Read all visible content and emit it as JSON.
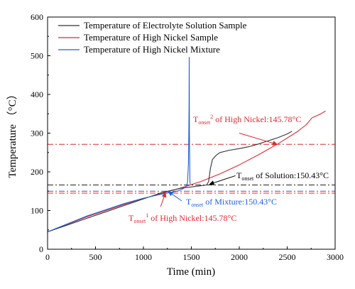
{
  "chart_data": {
    "type": "line",
    "xlabel": "Time (min)",
    "ylabel": "Temperature （°C）",
    "xlim": [
      0,
      3000
    ],
    "ylim": [
      0,
      600
    ],
    "x_ticks": [
      0,
      500,
      1000,
      1500,
      2000,
      2500,
      3000
    ],
    "y_ticks": [
      0,
      100,
      200,
      300,
      400,
      500,
      600
    ],
    "legend_position": "top-left",
    "series": [
      {
        "name": "Temperature of Electrolyte Solution Sample",
        "color": "#333333",
        "points": [
          [
            0,
            45
          ],
          [
            200,
            62
          ],
          [
            400,
            79
          ],
          [
            600,
            96
          ],
          [
            800,
            113
          ],
          [
            1000,
            130
          ],
          [
            1200,
            147
          ],
          [
            1400,
            158
          ],
          [
            1600,
            164
          ],
          [
            1660,
            166
          ],
          [
            1680,
            175
          ],
          [
            1700,
            210
          ],
          [
            1720,
            232
          ],
          [
            1760,
            243
          ],
          [
            1800,
            250
          ],
          [
            1900,
            256
          ],
          [
            2000,
            260
          ],
          [
            2100,
            265
          ],
          [
            2200,
            272
          ],
          [
            2300,
            280
          ],
          [
            2400,
            288
          ],
          [
            2500,
            298
          ],
          [
            2550,
            305
          ]
        ]
      },
      {
        "name": "Temperature of High Nickel Sample",
        "color": "#e0282f",
        "points": [
          [
            0,
            45
          ],
          [
            400,
            83
          ],
          [
            800,
            116
          ],
          [
            1000,
            131
          ],
          [
            1200,
            145
          ],
          [
            1400,
            159
          ],
          [
            1600,
            175
          ],
          [
            1800,
            195
          ],
          [
            2000,
            218
          ],
          [
            2200,
            244
          ],
          [
            2400,
            272
          ],
          [
            2600,
            303
          ],
          [
            2700,
            322
          ],
          [
            2760,
            340
          ],
          [
            2800,
            344
          ],
          [
            2850,
            350
          ],
          [
            2900,
            357
          ]
        ]
      },
      {
        "name": "Temperature of High Nickel Mixture",
        "color": "#1f5fe0",
        "points": [
          [
            0,
            45
          ],
          [
            400,
            85
          ],
          [
            800,
            118
          ],
          [
            1000,
            132
          ],
          [
            1200,
            143
          ],
          [
            1350,
            150
          ],
          [
            1400,
            155
          ],
          [
            1440,
            160
          ],
          [
            1460,
            172
          ],
          [
            1470,
            220
          ],
          [
            1474,
            310
          ],
          [
            1476,
            372
          ],
          [
            1478,
            496
          ],
          [
            1480,
            300
          ],
          [
            1485,
            175
          ],
          [
            1490,
            168
          ]
        ]
      }
    ],
    "reference_lines": [
      {
        "y": 271,
        "color": "#e0282f",
        "style": "dash-dot"
      },
      {
        "y": 166,
        "color": "#222222",
        "style": "dash-dot"
      },
      {
        "y": 150,
        "color": "#1f5fe0",
        "style": "dash-dot"
      },
      {
        "y": 145,
        "color": "#e0282f",
        "style": "dash-dot"
      }
    ],
    "annotations": {
      "nickel2": {
        "main": "T",
        "sub": "onset",
        "sup": "2",
        "rest": " of High Nickel:145.78°C",
        "color": "#e0282f"
      },
      "solution": {
        "main": "T",
        "sub": "onset",
        "rest": " of Solution:150.43°C",
        "color": "#000000"
      },
      "mixture": {
        "main": "T",
        "sub": "onset",
        "rest": " of Mixture:150.43°C",
        "color": "#1f5fe0"
      },
      "nickel1": {
        "main": "T",
        "sub": "onset",
        "sup": "1",
        "rest": " of High Nickel:145.78°C",
        "color": "#e0282f"
      }
    }
  }
}
